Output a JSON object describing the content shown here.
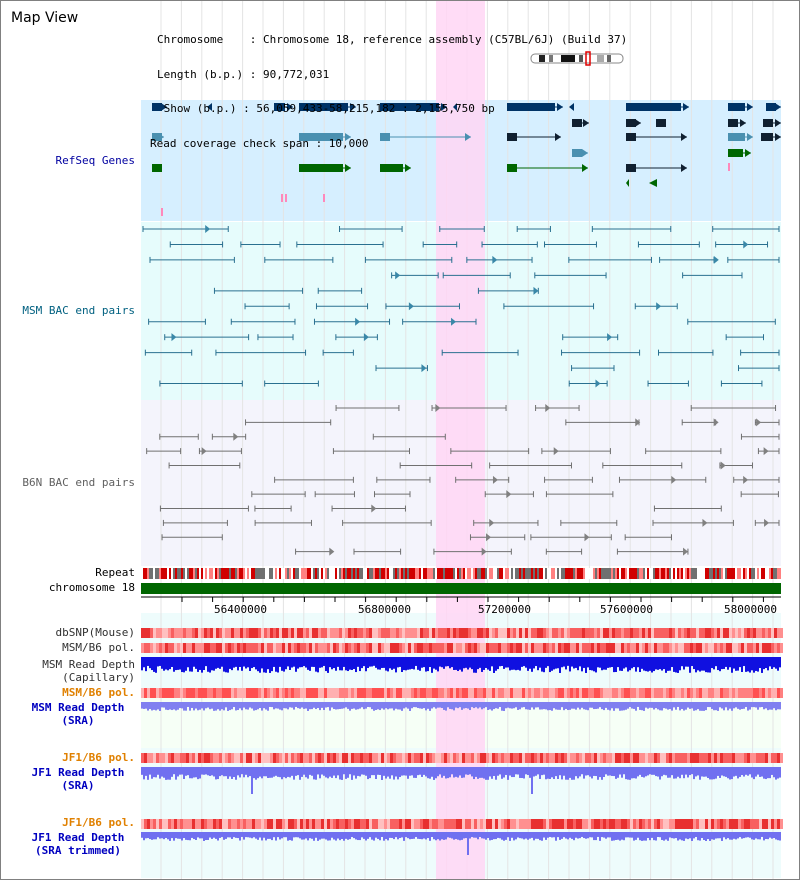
{
  "window": {
    "title": "Map View"
  },
  "header": {
    "lines": [
      "Chromosome    : Chromosome 18, reference assembly (C57BL/6J) (Build 37)",
      "Length (b.p.) : 90,772,031",
      " Show (b.p.) : 56,059,433-58,215,182 : 2,155,750 bp",
      "Read coverage check span : 10,000"
    ]
  },
  "tracks": {
    "refseq": "RefSeq Genes",
    "msm_bac": "MSM BAC end pairs",
    "b6n_bac": "B6N BAC end pairs",
    "repeat": "Repeat",
    "chromosome": "chromosome 18",
    "dbsnp": "dbSNP(Mouse)",
    "msm_b6_pol_1": "MSM/B6 pol.",
    "msm_depth_cap_1": "MSM Read Depth",
    "msm_depth_cap_2": "(Capillary)",
    "msm_b6_pol_2": "MSM/B6 pol.",
    "msm_depth_sra_1": "MSM Read Depth",
    "msm_depth_sra_2": "(SRA)",
    "jf1_b6_pol_1": "JF1/B6 pol.",
    "jf1_depth_sra_1": "JF1 Read Depth",
    "jf1_depth_sra_2": "(SRA)",
    "jf1_b6_pol_2": "JF1/B6 pol.",
    "jf1_depth_trim_1": "JF1 Read Depth",
    "jf1_depth_trim_2": "(SRA trimmed)"
  },
  "axis": {
    "ticks": [
      "56400000",
      "56800000",
      "57200000",
      "57600000",
      "58000000"
    ]
  },
  "colors": {
    "refseq_bg": "#d6efff",
    "msm_bg": "#e6fcfc",
    "b6n_bg": "#f4f4fc",
    "highlight": "#ffd6f4",
    "refseq_label": "#0000a0",
    "msm_label": "#006080",
    "b6n_label": "#606060",
    "orange_label": "#e08000",
    "blue_label": "#0000c0",
    "gene_dark": "#003366",
    "gene_mid": "#4a90b0",
    "gene_green": "#006600",
    "chromosome_bar": "#006600"
  }
}
